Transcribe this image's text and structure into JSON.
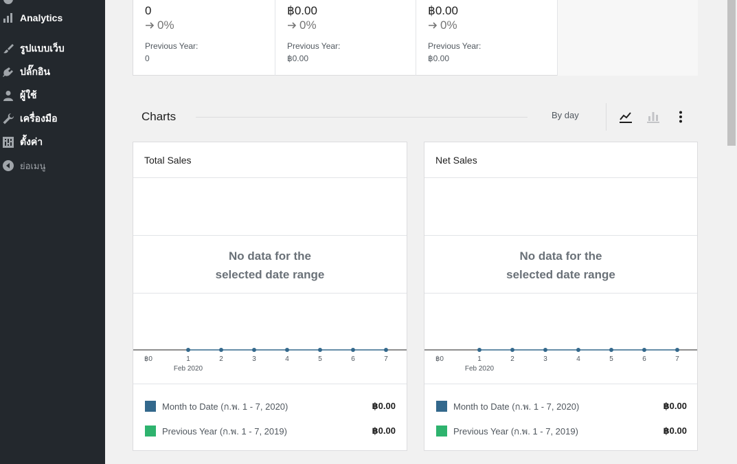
{
  "sidebar": {
    "items": [
      {
        "label": "Analytics",
        "icon": "bar-chart-icon"
      },
      {
        "label": "รูปแบบเว็บ",
        "icon": "paintbrush-icon"
      },
      {
        "label": "ปลั๊กอิน",
        "icon": "plug-icon"
      },
      {
        "label": "ผู้ใช้",
        "icon": "user-icon"
      },
      {
        "label": "เครื่องมือ",
        "icon": "wrench-icon"
      },
      {
        "label": "ตั้งค่า",
        "icon": "settings-icon"
      },
      {
        "label": "ย่อเมนู",
        "icon": "collapse-arrow-icon"
      }
    ]
  },
  "stats": [
    {
      "value": "0",
      "delta": "0%",
      "prev_label": "Previous Year:",
      "prev_value": "0"
    },
    {
      "value": "฿0.00",
      "delta": "0%",
      "prev_label": "Previous Year:",
      "prev_value": "฿0.00"
    },
    {
      "value": "฿0.00",
      "delta": "0%",
      "prev_label": "Previous Year:",
      "prev_value": "฿0.00"
    }
  ],
  "charts_header": {
    "title": "Charts",
    "interval": "By day",
    "icons": [
      "line-chart-icon",
      "bar-chart-icon",
      "more-options-icon"
    ]
  },
  "cards": [
    {
      "title": "Total Sales",
      "no_data_line1": "No data for the",
      "no_data_line2": "selected date range",
      "legend": [
        {
          "label": "Month to Date (ก.พ. 1 - 7, 2020)",
          "value": "฿0.00",
          "color": "#33688c"
        },
        {
          "label": "Previous Year (ก.พ. 1 - 7, 2019)",
          "value": "฿0.00",
          "color": "#2eb36e"
        }
      ]
    },
    {
      "title": "Net Sales",
      "no_data_line1": "No data for the",
      "no_data_line2": "selected date range",
      "legend": [
        {
          "label": "Month to Date (ก.พ. 1 - 7, 2020)",
          "value": "฿0.00",
          "color": "#33688c"
        },
        {
          "label": "Previous Year (ก.พ. 1 - 7, 2019)",
          "value": "฿0.00",
          "color": "#2eb36e"
        }
      ]
    }
  ],
  "chart_data": [
    {
      "type": "line",
      "title": "Total Sales",
      "x": [
        "1",
        "2",
        "3",
        "4",
        "5",
        "6",
        "7"
      ],
      "x_sublabel": "Feb 2020",
      "y_tick": "฿0",
      "series": [
        {
          "name": "Month to Date (ก.พ. 1 - 7, 2020)",
          "values": [
            0,
            0,
            0,
            0,
            0,
            0,
            0
          ],
          "color": "#33688c"
        },
        {
          "name": "Previous Year (ก.พ. 1 - 7, 2019)",
          "values": [
            0,
            0,
            0,
            0,
            0,
            0,
            0
          ],
          "color": "#2eb36e"
        }
      ]
    },
    {
      "type": "line",
      "title": "Net Sales",
      "x": [
        "1",
        "2",
        "3",
        "4",
        "5",
        "6",
        "7"
      ],
      "x_sublabel": "Feb 2020",
      "y_tick": "฿0",
      "series": [
        {
          "name": "Month to Date (ก.พ. 1 - 7, 2020)",
          "values": [
            0,
            0,
            0,
            0,
            0,
            0,
            0
          ],
          "color": "#33688c"
        },
        {
          "name": "Previous Year (ก.พ. 1 - 7, 2019)",
          "values": [
            0,
            0,
            0,
            0,
            0,
            0,
            0
          ],
          "color": "#2eb36e"
        }
      ]
    }
  ]
}
